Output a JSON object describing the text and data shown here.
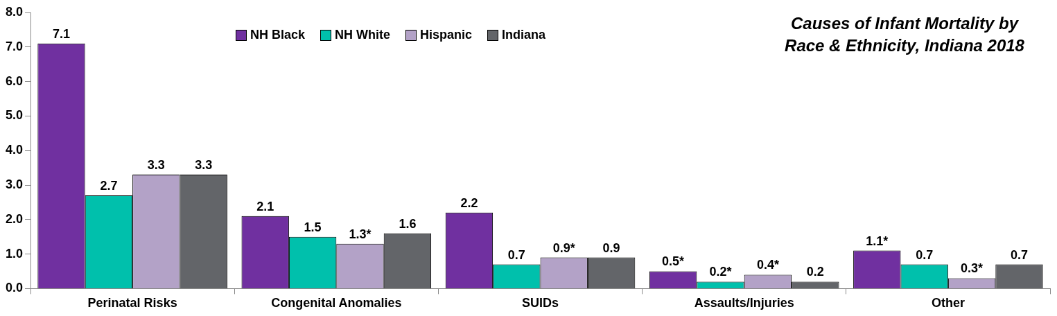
{
  "chart_data": {
    "type": "bar",
    "title": "Causes of Infant Mortality by Race & Ethnicity, Indiana 2018",
    "categories": [
      "Perinatal Risks",
      "Congenital Anomalies",
      "SUIDs",
      "Assaults/Injuries",
      "Other"
    ],
    "series": [
      {
        "name": "NH Black",
        "color": "#7030a0",
        "values": [
          7.1,
          2.1,
          2.2,
          0.5,
          1.1
        ],
        "value_labels": [
          "7.1",
          "2.1",
          "2.2",
          "0.5*",
          "1.1*"
        ]
      },
      {
        "name": "NH White",
        "color": "#00c0ac",
        "values": [
          2.7,
          1.5,
          0.7,
          0.2,
          0.7
        ],
        "value_labels": [
          "2.7",
          "1.5",
          "0.7",
          "0.2*",
          "0.7"
        ]
      },
      {
        "name": "Hispanic",
        "color": "#b3a2c7",
        "values": [
          3.3,
          1.3,
          0.9,
          0.4,
          0.3
        ],
        "value_labels": [
          "3.3",
          "1.3*",
          "0.9*",
          "0.4*",
          "0.3*"
        ]
      },
      {
        "name": "Indiana",
        "color": "#636569",
        "values": [
          3.3,
          1.6,
          0.9,
          0.2,
          0.7
        ],
        "value_labels": [
          "3.3",
          "1.6",
          "0.9",
          "0.2",
          "0.7"
        ]
      }
    ],
    "ylim": [
      0,
      8
    ],
    "yticks": [
      {
        "value": 0,
        "label": "0.0"
      },
      {
        "value": 1,
        "label": "1.0"
      },
      {
        "value": 2,
        "label": "2.0"
      },
      {
        "value": 3,
        "label": "3.0"
      },
      {
        "value": 4,
        "label": "4.0"
      },
      {
        "value": 5,
        "label": "5.0"
      },
      {
        "value": 6,
        "label": "6.0"
      },
      {
        "value": 7,
        "label": "7.0"
      },
      {
        "value": 8,
        "label": "8.0"
      }
    ],
    "grid": false,
    "legend": "top"
  }
}
